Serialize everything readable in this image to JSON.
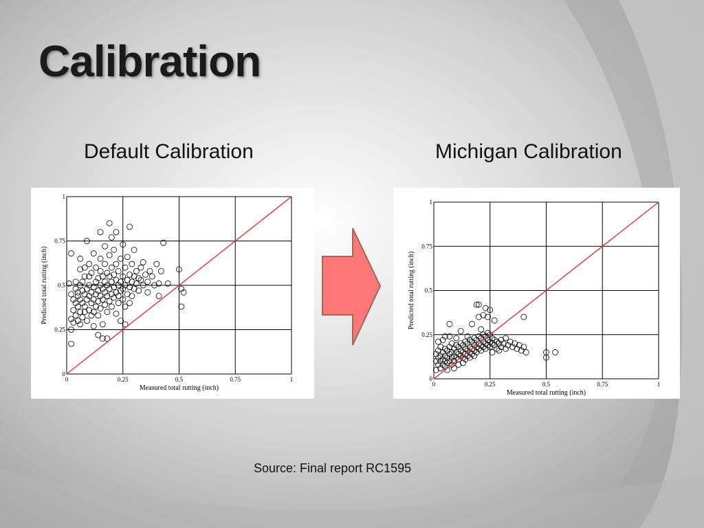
{
  "slide": {
    "title": "Calibration",
    "left_heading": "Default Calibration",
    "right_heading": "Michigan Calibration",
    "source": "Source:  Final report RC1595"
  },
  "colors": {
    "arrow_fill": "#ff7777",
    "equality_line": "#e83030",
    "marker_stroke": "#000000"
  },
  "chart_data": [
    {
      "type": "scatter",
      "title": "",
      "xlabel": "Measured total rutting (inch)",
      "ylabel": "Predicted total rutting (inch)",
      "xlim": [
        0,
        1
      ],
      "ylim": [
        0,
        1
      ],
      "xticks": [
        "0",
        "0.25",
        "0.5",
        "0.75",
        "1"
      ],
      "yticks": [
        "0",
        "0.25",
        "0.5",
        "0.75",
        "1"
      ],
      "grid": true,
      "reference_line": "y = x",
      "marker": "open circle",
      "points": [
        [
          0.01,
          0.51
        ],
        [
          0.02,
          0.45
        ],
        [
          0.02,
          0.31
        ],
        [
          0.02,
          0.25
        ],
        [
          0.02,
          0.17
        ],
        [
          0.02,
          0.68
        ],
        [
          0.03,
          0.42
        ],
        [
          0.03,
          0.36
        ],
        [
          0.03,
          0.29
        ],
        [
          0.04,
          0.48
        ],
        [
          0.04,
          0.52
        ],
        [
          0.04,
          0.4
        ],
        [
          0.04,
          0.33
        ],
        [
          0.05,
          0.44
        ],
        [
          0.05,
          0.38
        ],
        [
          0.05,
          0.3
        ],
        [
          0.05,
          0.46
        ],
        [
          0.06,
          0.5
        ],
        [
          0.06,
          0.42
        ],
        [
          0.06,
          0.35
        ],
        [
          0.06,
          0.28
        ],
        [
          0.06,
          0.59
        ],
        [
          0.06,
          0.65
        ],
        [
          0.07,
          0.47
        ],
        [
          0.07,
          0.4
        ],
        [
          0.07,
          0.32
        ],
        [
          0.07,
          0.52
        ],
        [
          0.08,
          0.45
        ],
        [
          0.08,
          0.38
        ],
        [
          0.08,
          0.55
        ],
        [
          0.08,
          0.6
        ],
        [
          0.08,
          0.35
        ],
        [
          0.09,
          0.48
        ],
        [
          0.09,
          0.42
        ],
        [
          0.09,
          0.3
        ],
        [
          0.09,
          0.75
        ],
        [
          0.1,
          0.5
        ],
        [
          0.1,
          0.44
        ],
        [
          0.1,
          0.36
        ],
        [
          0.1,
          0.55
        ],
        [
          0.1,
          0.62
        ],
        [
          0.11,
          0.46
        ],
        [
          0.11,
          0.4
        ],
        [
          0.11,
          0.33
        ],
        [
          0.11,
          0.57
        ],
        [
          0.12,
          0.49
        ],
        [
          0.12,
          0.42
        ],
        [
          0.12,
          0.35
        ],
        [
          0.12,
          0.68
        ],
        [
          0.12,
          0.27
        ],
        [
          0.13,
          0.52
        ],
        [
          0.13,
          0.45
        ],
        [
          0.13,
          0.38
        ],
        [
          0.13,
          0.6
        ],
        [
          0.14,
          0.47
        ],
        [
          0.14,
          0.41
        ],
        [
          0.14,
          0.54
        ],
        [
          0.14,
          0.33
        ],
        [
          0.14,
          0.22
        ],
        [
          0.15,
          0.5
        ],
        [
          0.15,
          0.44
        ],
        [
          0.15,
          0.37
        ],
        [
          0.15,
          0.58
        ],
        [
          0.15,
          0.65
        ],
        [
          0.15,
          0.8
        ],
        [
          0.16,
          0.48
        ],
        [
          0.16,
          0.42
        ],
        [
          0.16,
          0.55
        ],
        [
          0.16,
          0.28
        ],
        [
          0.16,
          0.2
        ],
        [
          0.17,
          0.52
        ],
        [
          0.17,
          0.46
        ],
        [
          0.17,
          0.39
        ],
        [
          0.17,
          0.62
        ],
        [
          0.17,
          0.72
        ],
        [
          0.18,
          0.5
        ],
        [
          0.18,
          0.44
        ],
        [
          0.18,
          0.57
        ],
        [
          0.18,
          0.35
        ],
        [
          0.18,
          0.2
        ],
        [
          0.19,
          0.48
        ],
        [
          0.19,
          0.41
        ],
        [
          0.19,
          0.55
        ],
        [
          0.19,
          0.67
        ],
        [
          0.19,
          0.85
        ],
        [
          0.2,
          0.52
        ],
        [
          0.2,
          0.45
        ],
        [
          0.2,
          0.6
        ],
        [
          0.2,
          0.38
        ],
        [
          0.2,
          0.77
        ],
        [
          0.21,
          0.49
        ],
        [
          0.21,
          0.43
        ],
        [
          0.21,
          0.56
        ],
        [
          0.21,
          0.7
        ],
        [
          0.22,
          0.53
        ],
        [
          0.22,
          0.46
        ],
        [
          0.22,
          0.62
        ],
        [
          0.22,
          0.34
        ],
        [
          0.22,
          0.8
        ],
        [
          0.23,
          0.5
        ],
        [
          0.23,
          0.44
        ],
        [
          0.23,
          0.58
        ],
        [
          0.23,
          0.4
        ],
        [
          0.24,
          0.52
        ],
        [
          0.24,
          0.47
        ],
        [
          0.24,
          0.65
        ],
        [
          0.24,
          0.3
        ],
        [
          0.25,
          0.55
        ],
        [
          0.25,
          0.48
        ],
        [
          0.25,
          0.42
        ],
        [
          0.25,
          0.73
        ],
        [
          0.26,
          0.5
        ],
        [
          0.26,
          0.6
        ],
        [
          0.26,
          0.38
        ],
        [
          0.26,
          0.28
        ],
        [
          0.27,
          0.53
        ],
        [
          0.27,
          0.45
        ],
        [
          0.27,
          0.66
        ],
        [
          0.28,
          0.56
        ],
        [
          0.28,
          0.49
        ],
        [
          0.28,
          0.4
        ],
        [
          0.28,
          0.83
        ],
        [
          0.29,
          0.52
        ],
        [
          0.29,
          0.62
        ],
        [
          0.29,
          0.44
        ],
        [
          0.3,
          0.55
        ],
        [
          0.3,
          0.48
        ],
        [
          0.3,
          0.7
        ],
        [
          0.31,
          0.58
        ],
        [
          0.31,
          0.51
        ],
        [
          0.32,
          0.54
        ],
        [
          0.32,
          0.47
        ],
        [
          0.33,
          0.6
        ],
        [
          0.33,
          0.53
        ],
        [
          0.34,
          0.5
        ],
        [
          0.34,
          0.63
        ],
        [
          0.35,
          0.56
        ],
        [
          0.36,
          0.52
        ],
        [
          0.36,
          0.46
        ],
        [
          0.37,
          0.58
        ],
        [
          0.38,
          0.55
        ],
        [
          0.39,
          0.5
        ],
        [
          0.4,
          0.62
        ],
        [
          0.41,
          0.51
        ],
        [
          0.41,
          0.44
        ],
        [
          0.42,
          0.58
        ],
        [
          0.43,
          0.74
        ],
        [
          0.45,
          0.51
        ],
        [
          0.5,
          0.59
        ],
        [
          0.51,
          0.38
        ],
        [
          0.51,
          0.48
        ],
        [
          0.52,
          0.46
        ]
      ]
    },
    {
      "type": "scatter",
      "title": "",
      "xlabel": "Measured total rutting (inch)",
      "ylabel": "Predicted total rutting (inch)",
      "xlim": [
        0,
        1
      ],
      "ylim": [
        0,
        1
      ],
      "xticks": [
        "0",
        "0.25",
        "0.5",
        "0.75",
        "1"
      ],
      "yticks": [
        "0",
        "0.25",
        "0.5",
        "0.75",
        "1"
      ],
      "grid": true,
      "reference_line": "y = x",
      "marker": "open circle",
      "points": [
        [
          0.01,
          0.05
        ],
        [
          0.01,
          0.1
        ],
        [
          0.01,
          0.14
        ],
        [
          0.02,
          0.08
        ],
        [
          0.02,
          0.12
        ],
        [
          0.02,
          0.16
        ],
        [
          0.02,
          0.21
        ],
        [
          0.03,
          0.06
        ],
        [
          0.03,
          0.1
        ],
        [
          0.03,
          0.13
        ],
        [
          0.03,
          0.18
        ],
        [
          0.04,
          0.08
        ],
        [
          0.04,
          0.11
        ],
        [
          0.04,
          0.15
        ],
        [
          0.04,
          0.22
        ],
        [
          0.05,
          0.07
        ],
        [
          0.05,
          0.1
        ],
        [
          0.05,
          0.13
        ],
        [
          0.05,
          0.17
        ],
        [
          0.05,
          0.24
        ],
        [
          0.06,
          0.09
        ],
        [
          0.06,
          0.12
        ],
        [
          0.06,
          0.16
        ],
        [
          0.06,
          0.05
        ],
        [
          0.07,
          0.1
        ],
        [
          0.07,
          0.14
        ],
        [
          0.07,
          0.18
        ],
        [
          0.07,
          0.24
        ],
        [
          0.07,
          0.31
        ],
        [
          0.08,
          0.08
        ],
        [
          0.08,
          0.12
        ],
        [
          0.08,
          0.15
        ],
        [
          0.08,
          0.2
        ],
        [
          0.09,
          0.1
        ],
        [
          0.09,
          0.13
        ],
        [
          0.09,
          0.17
        ],
        [
          0.09,
          0.06
        ],
        [
          0.1,
          0.12
        ],
        [
          0.1,
          0.15
        ],
        [
          0.1,
          0.19
        ],
        [
          0.1,
          0.23
        ],
        [
          0.11,
          0.11
        ],
        [
          0.11,
          0.14
        ],
        [
          0.11,
          0.18
        ],
        [
          0.11,
          0.08
        ],
        [
          0.12,
          0.13
        ],
        [
          0.12,
          0.16
        ],
        [
          0.12,
          0.2
        ],
        [
          0.12,
          0.27
        ],
        [
          0.13,
          0.12
        ],
        [
          0.13,
          0.15
        ],
        [
          0.13,
          0.19
        ],
        [
          0.13,
          0.09
        ],
        [
          0.14,
          0.14
        ],
        [
          0.14,
          0.17
        ],
        [
          0.14,
          0.21
        ],
        [
          0.14,
          0.11
        ],
        [
          0.15,
          0.13
        ],
        [
          0.15,
          0.16
        ],
        [
          0.15,
          0.2
        ],
        [
          0.15,
          0.24
        ],
        [
          0.16,
          0.15
        ],
        [
          0.16,
          0.18
        ],
        [
          0.16,
          0.22
        ],
        [
          0.16,
          0.12
        ],
        [
          0.17,
          0.14
        ],
        [
          0.17,
          0.17
        ],
        [
          0.17,
          0.21
        ],
        [
          0.17,
          0.31
        ],
        [
          0.18,
          0.16
        ],
        [
          0.18,
          0.19
        ],
        [
          0.18,
          0.23
        ],
        [
          0.18,
          0.13
        ],
        [
          0.19,
          0.15
        ],
        [
          0.19,
          0.18
        ],
        [
          0.19,
          0.22
        ],
        [
          0.19,
          0.42
        ],
        [
          0.2,
          0.17
        ],
        [
          0.2,
          0.2
        ],
        [
          0.2,
          0.24
        ],
        [
          0.2,
          0.35
        ],
        [
          0.2,
          0.42
        ],
        [
          0.21,
          0.16
        ],
        [
          0.21,
          0.19
        ],
        [
          0.21,
          0.23
        ],
        [
          0.21,
          0.28
        ],
        [
          0.22,
          0.18
        ],
        [
          0.22,
          0.21
        ],
        [
          0.22,
          0.25
        ],
        [
          0.22,
          0.36
        ],
        [
          0.23,
          0.17
        ],
        [
          0.23,
          0.2
        ],
        [
          0.23,
          0.24
        ],
        [
          0.23,
          0.4
        ],
        [
          0.24,
          0.19
        ],
        [
          0.24,
          0.22
        ],
        [
          0.24,
          0.26
        ],
        [
          0.24,
          0.35
        ],
        [
          0.25,
          0.18
        ],
        [
          0.25,
          0.21
        ],
        [
          0.25,
          0.25
        ],
        [
          0.25,
          0.39
        ],
        [
          0.26,
          0.2
        ],
        [
          0.26,
          0.23
        ],
        [
          0.26,
          0.15
        ],
        [
          0.27,
          0.19
        ],
        [
          0.27,
          0.22
        ],
        [
          0.27,
          0.33
        ],
        [
          0.28,
          0.21
        ],
        [
          0.28,
          0.17
        ],
        [
          0.29,
          0.2
        ],
        [
          0.29,
          0.16
        ],
        [
          0.3,
          0.22
        ],
        [
          0.3,
          0.18
        ],
        [
          0.31,
          0.2
        ],
        [
          0.32,
          0.17
        ],
        [
          0.32,
          0.23
        ],
        [
          0.33,
          0.19
        ],
        [
          0.34,
          0.21
        ],
        [
          0.35,
          0.18
        ],
        [
          0.36,
          0.2
        ],
        [
          0.37,
          0.17
        ],
        [
          0.38,
          0.19
        ],
        [
          0.39,
          0.16
        ],
        [
          0.4,
          0.18
        ],
        [
          0.4,
          0.35
        ],
        [
          0.41,
          0.15
        ],
        [
          0.5,
          0.12
        ],
        [
          0.5,
          0.15
        ],
        [
          0.54,
          0.15
        ]
      ]
    }
  ]
}
